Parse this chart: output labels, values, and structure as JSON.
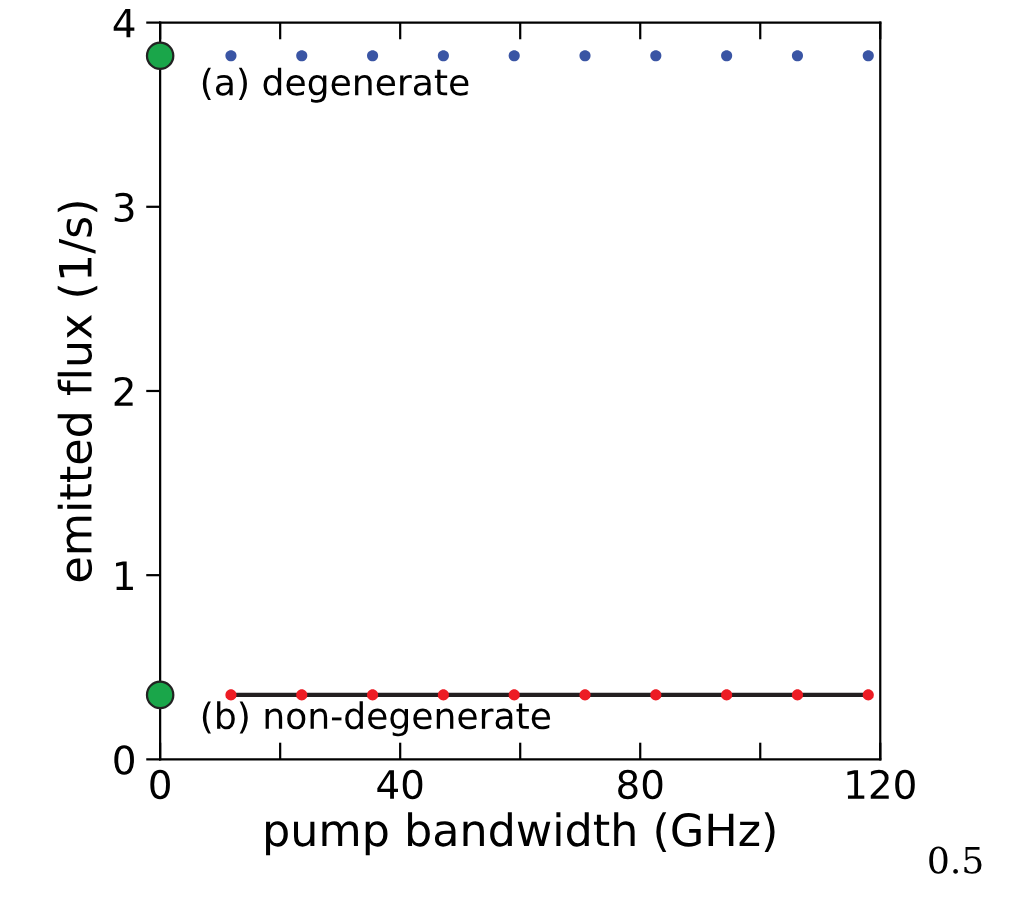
{
  "chart_data": {
    "type": "scatter",
    "xlabel": "pump bandwidth (GHz)",
    "ylabel": "emitted flux (1/s)",
    "xlim": [
      0,
      120
    ],
    "ylim": [
      0,
      4
    ],
    "xticks": [
      0,
      {
        "value": 20,
        "label": null
      },
      40,
      {
        "value": 60,
        "label": null
      },
      80,
      {
        "value": 100,
        "label": null
      },
      120
    ],
    "yticks": [
      0,
      1,
      2,
      3,
      4
    ],
    "grid": false,
    "legend": false,
    "series": [
      {
        "color": "#3a55a4",
        "marker": "circle",
        "x": [
          11.8,
          23.6,
          35.4,
          47.2,
          59,
          70.8,
          82.6,
          94.4,
          106.2,
          118
        ],
        "values": [
          3.82,
          3.82,
          3.82,
          3.82,
          3.82,
          3.82,
          3.82,
          3.82,
          3.82,
          3.82
        ]
      },
      {
        "type": "line",
        "color": "#231f20",
        "marker": "none",
        "x": [
          11.8,
          118
        ],
        "values": [
          0.35,
          0.35
        ]
      },
      {
        "type": "scatter",
        "color": "#ed1c24",
        "marker": "circle",
        "x": [
          11.8,
          23.6,
          35.4,
          47.2,
          59,
          70.8,
          82.6,
          94.4,
          106.2,
          118
        ],
        "values": [
          0.35,
          0.35,
          0.35,
          0.35,
          0.35,
          0.35,
          0.35,
          0.35,
          0.35,
          0.35
        ]
      },
      {
        "type": "scatter",
        "color": "#1aa64a",
        "marker": "circle",
        "x": [
          0,
          0
        ],
        "values": [
          3.82,
          0.35
        ]
      }
    ],
    "annotations": [
      "(a) degenerate",
      "(b) non-degenerate",
      "0.5"
    ]
  }
}
